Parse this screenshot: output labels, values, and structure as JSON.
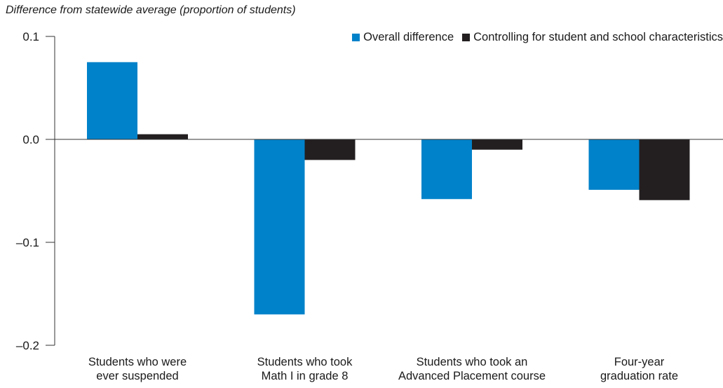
{
  "chart_data": {
    "type": "bar",
    "ylabel": "Difference from statewide average (proportion of students)",
    "categories": [
      [
        "Students who were",
        "ever suspended"
      ],
      [
        "Students who took",
        "Math I in grade 8"
      ],
      [
        "Students who took an",
        "Advanced Placement course"
      ],
      [
        "Four-year",
        "graduation rate"
      ]
    ],
    "series": [
      {
        "name": "Overall difference",
        "color": "#0082ca",
        "values": [
          0.075,
          -0.17,
          -0.058,
          -0.049
        ]
      },
      {
        "name": "Controlling for student and school characteristics",
        "color": "#231f20",
        "values": [
          0.005,
          -0.02,
          -0.01,
          -0.059
        ]
      }
    ],
    "ylim": [
      -0.2,
      0.1
    ],
    "yticks": [
      0.1,
      0.0,
      -0.1,
      -0.2
    ],
    "ytick_labels": [
      "0.1",
      "0.0",
      "–0.1",
      "–0.2"
    ],
    "legend_position": "top-right",
    "grid": false
  }
}
